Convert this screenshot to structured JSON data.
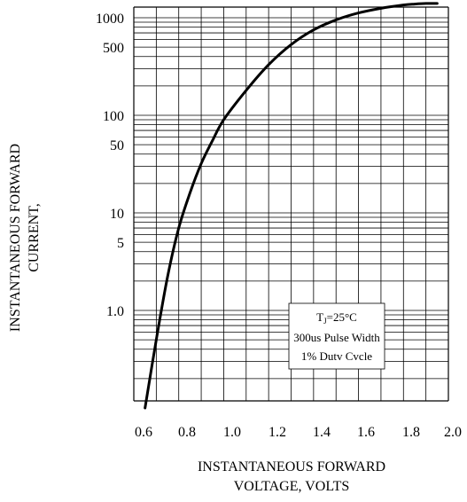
{
  "chart_data": {
    "type": "line",
    "title": "",
    "xlabel": "INSTANTANEOUS FORWARD\nVOLTAGE, VOLTS",
    "ylabel": "INSTANTANEOUS FORWARD\nCURRENT,",
    "x_scale": "linear",
    "y_scale": "log",
    "xlim": [
      0.6,
      2.0
    ],
    "ylim": [
      0.1,
      1500
    ],
    "x_ticks": [
      0.6,
      0.8,
      1.0,
      1.2,
      1.4,
      1.6,
      1.8,
      2.0
    ],
    "x_tick_labels": [
      "0.6",
      "0.8",
      "1.0",
      "1.2",
      "1.4",
      "1.6",
      "1.8",
      "2.0"
    ],
    "y_ticks": [
      1,
      5,
      10,
      50,
      100,
      500,
      1000
    ],
    "y_tick_labels": [
      "1.0",
      "5",
      "10",
      "50",
      "100",
      "500",
      "1000"
    ],
    "grid": true,
    "series": [
      {
        "x": [
          0.65,
          0.7,
          0.75,
          0.8,
          0.85,
          0.9,
          0.95,
          1.0,
          1.1,
          1.2,
          1.3,
          1.4,
          1.5,
          1.6,
          1.7,
          1.8,
          1.85,
          1.9,
          1.95
        ],
        "y": [
          0.1,
          0.5,
          2.2,
          7,
          16,
          32,
          55,
          90,
          180,
          330,
          530,
          750,
          950,
          1120,
          1250,
          1350,
          1380,
          1400,
          1400
        ]
      }
    ],
    "annotation": {
      "line1_main": "T",
      "line1_sub": "J",
      "line1_rest": "=25°C",
      "line2": "300us Pulse Width",
      "line3": "1% Dutv Cvcle"
    }
  }
}
